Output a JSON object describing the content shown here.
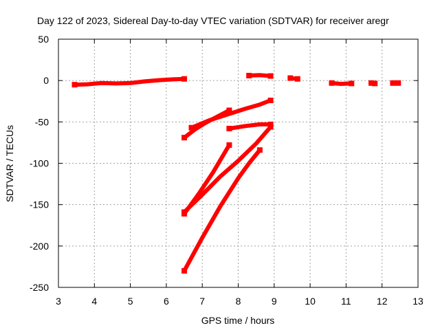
{
  "chart_data": {
    "type": "scatter",
    "title": "Day 122 of 2023, Sidereal Day-to-day VTEC variation (SDTVAR) for receiver aregr",
    "xlabel": "GPS time / hours",
    "ylabel": "SDTVAR / TECUs",
    "xlim": [
      3,
      13
    ],
    "ylim": [
      -250,
      50
    ],
    "xticks": [
      3,
      4,
      5,
      6,
      7,
      8,
      9,
      10,
      11,
      12,
      13
    ],
    "yticks": [
      50,
      0,
      -50,
      -100,
      -150,
      -200,
      -250
    ],
    "grid": true,
    "legend": "none",
    "color": "#ff0000",
    "series": [
      {
        "points": [
          [
            3.45,
            -5
          ],
          [
            3.8,
            -4.5
          ],
          [
            4.2,
            -3
          ],
          [
            4.6,
            -3.5
          ],
          [
            5.0,
            -3
          ],
          [
            5.4,
            -1
          ],
          [
            5.8,
            0.5
          ],
          [
            6.2,
            1.5
          ],
          [
            6.5,
            2
          ]
        ]
      },
      {
        "points": [
          [
            6.5,
            -69
          ],
          [
            6.8,
            -59
          ],
          [
            7.1,
            -51
          ],
          [
            7.4,
            -44
          ],
          [
            7.75,
            -36
          ]
        ]
      },
      {
        "points": [
          [
            6.7,
            -57
          ],
          [
            7.2,
            -48
          ],
          [
            7.7,
            -41
          ],
          [
            8.2,
            -34
          ],
          [
            8.6,
            -29
          ],
          [
            8.9,
            -24
          ]
        ]
      },
      {
        "points": [
          [
            7.75,
            -58
          ],
          [
            8.2,
            -55
          ],
          [
            8.6,
            -53
          ],
          [
            8.9,
            -53
          ]
        ]
      },
      {
        "points": [
          [
            6.5,
            -161
          ],
          [
            6.9,
            -137
          ],
          [
            7.3,
            -111
          ],
          [
            7.75,
            -78
          ]
        ]
      },
      {
        "points": [
          [
            6.5,
            -159
          ],
          [
            7.0,
            -138
          ],
          [
            7.5,
            -116
          ],
          [
            8.0,
            -97
          ],
          [
            8.5,
            -76
          ],
          [
            8.9,
            -56
          ]
        ]
      },
      {
        "points": [
          [
            6.5,
            -230
          ],
          [
            7.0,
            -190
          ],
          [
            7.5,
            -152
          ],
          [
            8.0,
            -118
          ],
          [
            8.3,
            -100
          ],
          [
            8.6,
            -84
          ]
        ]
      },
      {
        "points": [
          [
            8.3,
            6
          ],
          [
            8.6,
            6.5
          ],
          [
            8.9,
            5.5
          ]
        ]
      },
      {
        "points": [
          [
            9.45,
            3
          ],
          [
            9.65,
            2
          ]
        ]
      },
      {
        "points": [
          [
            10.6,
            -3
          ],
          [
            10.85,
            -4
          ],
          [
            11.15,
            -3.5
          ]
        ]
      },
      {
        "points": [
          [
            11.7,
            -3
          ],
          [
            11.8,
            -3.5
          ]
        ]
      },
      {
        "points": [
          [
            12.3,
            -3
          ],
          [
            12.45,
            -3
          ]
        ]
      }
    ]
  }
}
